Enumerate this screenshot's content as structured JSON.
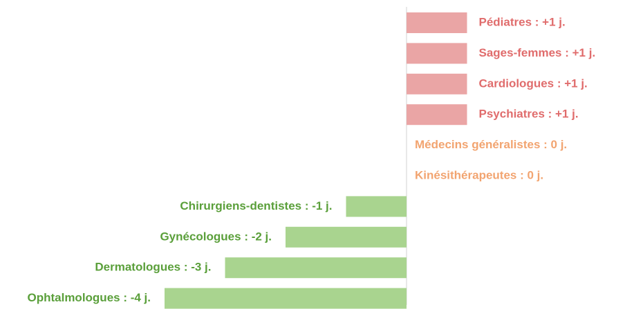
{
  "chart_data": {
    "type": "diverging-bar",
    "categories": [
      "Pédiatres : +1 j.",
      "Sages-femmes : +1 j.",
      "Cardiologues : +1 j.",
      "Psychiatres : +1 j.",
      "Médecins généralistes : 0 j.",
      "Kinésithérapeutes : 0 j.",
      "Chirurgiens-dentistes : -1 j.",
      "Gynécologues : -2 j.",
      "Dermatologues : -3 j.",
      "Ophtalmologues : -4 j."
    ],
    "values": [
      1,
      1,
      1,
      1,
      0,
      0,
      -1,
      -2,
      -3,
      -4
    ],
    "colors": {
      "positive_bar": "#eaa5a5",
      "positive_text": "#e06c6c",
      "zero_text": "#f2a470",
      "negative_bar": "#a9d48f",
      "negative_text": "#5a9f3a"
    }
  }
}
